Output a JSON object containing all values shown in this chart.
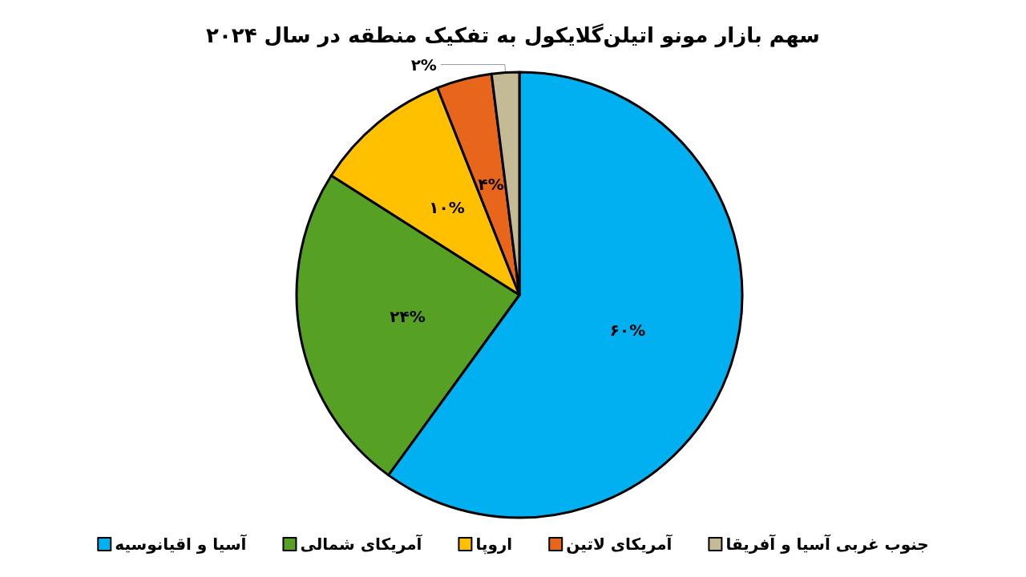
{
  "chart_data": {
    "type": "pie",
    "title": "سهم بازار مونو اتیلن‌گلایکول به تفکیک منطقه در سال ۲۰۲۴",
    "categories": [
      "آسیا و اقیانوسیه",
      "آمریکای شمالی",
      "اروپا",
      "آمریکای لاتین",
      "جنوب غربی آسیا و آفریقا"
    ],
    "values": [
      60,
      24,
      10,
      4,
      2
    ],
    "value_labels": [
      "۶۰%",
      "۲۴%",
      "۱۰%",
      "۴%",
      "۲%"
    ],
    "colors": [
      "#00b0f0",
      "#56a024",
      "#ffc000",
      "#e8661c",
      "#c4bb96"
    ],
    "legend": "bottom"
  }
}
